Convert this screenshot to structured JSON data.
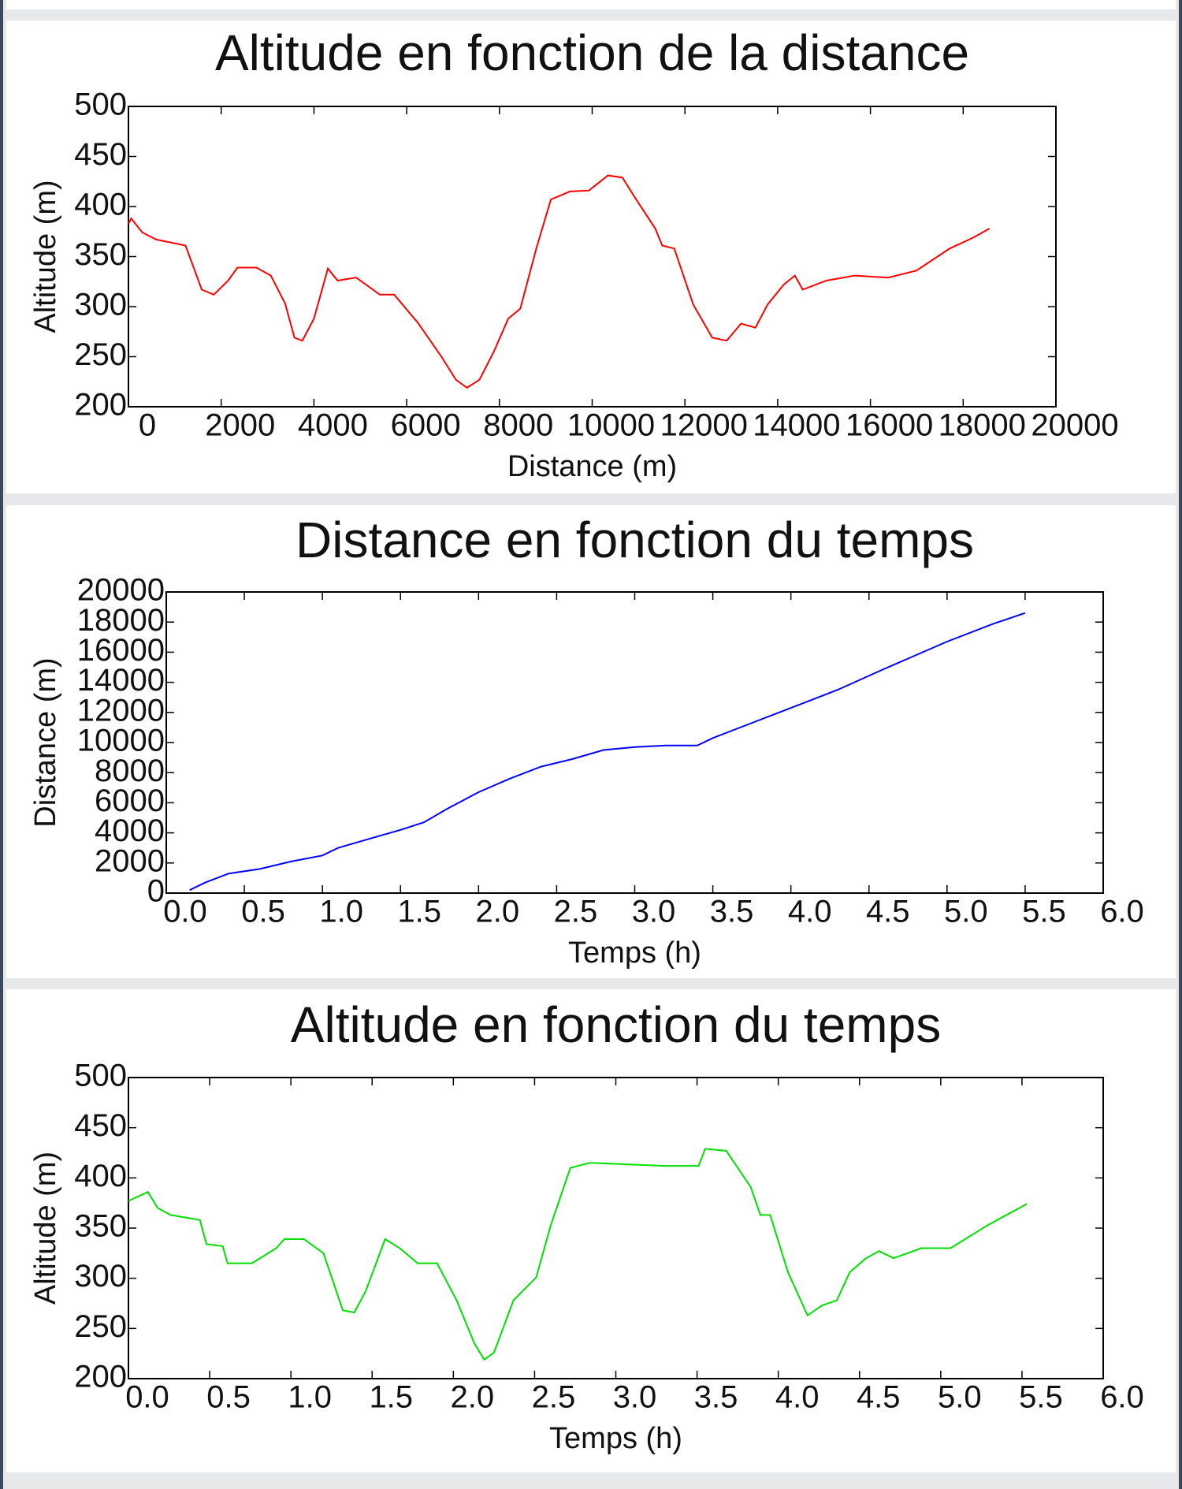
{
  "chart_data": [
    {
      "type": "line",
      "title": "Altitude en fonction de la distance",
      "x_label": "Distance (m)",
      "y_label": "Altitude (m)",
      "color": "#ff0000",
      "x": [
        0,
        60,
        300,
        600,
        1230,
        1430,
        1580,
        1840,
        2150,
        2350,
        2760,
        3070,
        3380,
        3580,
        3750,
        4000,
        4300,
        4510,
        4910,
        5420,
        5730,
        6240,
        6750,
        7060,
        7300,
        7570,
        7880,
        8190,
        8450,
        8800,
        9110,
        9520,
        9930,
        10340,
        10650,
        10950,
        11360,
        11510,
        11770,
        12180,
        12590,
        12900,
        13210,
        13520,
        13780,
        14130,
        14370,
        14540,
        15050,
        15660,
        16380,
        16990,
        17710,
        18220,
        18570
      ],
      "values": [
        383,
        388,
        374,
        367,
        361,
        336,
        317,
        312,
        326,
        339,
        339,
        331,
        303,
        269,
        266,
        288,
        338,
        326,
        329,
        312,
        312,
        284,
        250,
        227,
        219,
        227,
        255,
        288,
        298,
        359,
        407,
        415,
        416,
        431,
        429,
        407,
        378,
        361,
        358,
        302,
        269,
        266,
        283,
        279,
        302,
        322,
        331,
        317,
        326,
        331,
        329,
        336,
        358,
        369,
        378
      ],
      "xlim": [
        0,
        20000
      ],
      "ylim": [
        200,
        500
      ],
      "xticks": [
        0,
        2000,
        4000,
        6000,
        8000,
        10000,
        12000,
        14000,
        16000,
        18000,
        20000
      ],
      "yticks": [
        200,
        250,
        300,
        350,
        400,
        450,
        500
      ]
    },
    {
      "type": "line",
      "title": "Distance en fonction du temps",
      "x_label": "Temps (h)",
      "y_label": "Distance (m)",
      "color": "#0000ff",
      "x": [
        0.15,
        0.25,
        0.4,
        0.6,
        0.8,
        1.0,
        1.1,
        1.3,
        1.5,
        1.65,
        1.8,
        2.0,
        2.2,
        2.4,
        2.6,
        2.8,
        3.0,
        3.2,
        3.4,
        3.5,
        3.7,
        4.0,
        4.3,
        4.6,
        5.0,
        5.3,
        5.5
      ],
      "values": [
        200,
        700,
        1300,
        1600,
        2100,
        2500,
        3000,
        3600,
        4200,
        4700,
        5600,
        6700,
        7600,
        8400,
        8900,
        9500,
        9700,
        9800,
        9800,
        10300,
        11100,
        12300,
        13500,
        14900,
        16700,
        17900,
        18600
      ],
      "xlim": [
        0,
        6
      ],
      "ylim": [
        0,
        20000
      ],
      "xticks": [
        {
          "value": 0,
          "label": "0.0"
        },
        0.5,
        {
          "value": 1,
          "label": "1.0"
        },
        1.5,
        {
          "value": 2,
          "label": "2.0"
        },
        2.5,
        {
          "value": 3,
          "label": "3.0"
        },
        3.5,
        {
          "value": 4,
          "label": "4.0"
        },
        4.5,
        {
          "value": 5,
          "label": "5.0"
        },
        5.5,
        {
          "value": 6,
          "label": "6.0"
        }
      ],
      "yticks": [
        0,
        2000,
        4000,
        6000,
        8000,
        10000,
        12000,
        14000,
        16000,
        18000,
        20000
      ]
    },
    {
      "type": "line",
      "title": "Altitude en fonction du temps",
      "x_label": "Temps (h)",
      "y_label": "Altitude (m)",
      "color": "#00e000",
      "x": [
        0,
        0.12,
        0.18,
        0.26,
        0.44,
        0.48,
        0.58,
        0.61,
        0.76,
        0.91,
        0.96,
        1.08,
        1.2,
        1.32,
        1.39,
        1.46,
        1.58,
        1.67,
        1.78,
        1.9,
        2.02,
        2.13,
        2.19,
        2.25,
        2.37,
        2.51,
        2.6,
        2.72,
        2.84,
        3.3,
        3.51,
        3.55,
        3.68,
        3.83,
        3.89,
        3.95,
        4.06,
        4.18,
        4.27,
        4.36,
        4.44,
        4.54,
        4.62,
        4.71,
        4.88,
        5.06,
        5.29,
        5.53
      ],
      "values": [
        377,
        386,
        370,
        363,
        358,
        334,
        332,
        315,
        315,
        330,
        339,
        339,
        325,
        268,
        266,
        287,
        339,
        330,
        315,
        315,
        278,
        235,
        219,
        226,
        278,
        301,
        353,
        410,
        415,
        412,
        412,
        429,
        427,
        391,
        363,
        363,
        306,
        263,
        273,
        278,
        306,
        320,
        327,
        320,
        330,
        330,
        353,
        374
      ],
      "xlim": [
        0,
        6
      ],
      "ylim": [
        200,
        500
      ],
      "xticks": [
        {
          "value": 0,
          "label": "0.0"
        },
        0.5,
        {
          "value": 1,
          "label": "1.0"
        },
        1.5,
        {
          "value": 2,
          "label": "2.0"
        },
        2.5,
        {
          "value": 3,
          "label": "3.0"
        },
        3.5,
        {
          "value": 4,
          "label": "4.0"
        },
        4.5,
        {
          "value": 5,
          "label": "5.0"
        },
        5.5,
        {
          "value": 6,
          "label": "6.0"
        }
      ],
      "yticks": [
        200,
        250,
        300,
        350,
        400,
        450,
        500
      ]
    }
  ]
}
